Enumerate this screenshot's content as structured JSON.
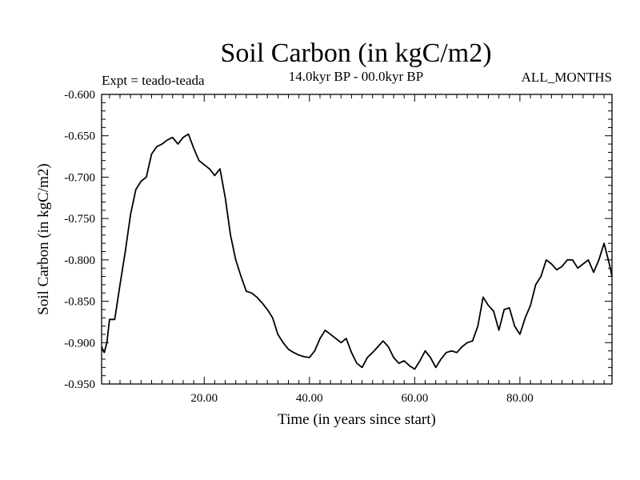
{
  "chart_data": {
    "type": "line",
    "title": "Soil Carbon (in kgC/m2)",
    "subtitle": "14.0kyr BP - 00.0kyr BP",
    "experiment": "Expt = teado-teada",
    "months": "ALL_MONTHS",
    "xlabel": "Time (in years since start)",
    "ylabel": "Soil Carbon (in kgC/m2)",
    "xlim": [
      0.5,
      97.5
    ],
    "ylim": [
      -0.95,
      -0.6
    ],
    "xticks": [
      20,
      40,
      60,
      80
    ],
    "xtick_labels": [
      "20.00",
      "40.00",
      "60.00",
      "80.00"
    ],
    "yticks": [
      -0.6,
      -0.65,
      -0.7,
      -0.75,
      -0.8,
      -0.85,
      -0.9,
      -0.95
    ],
    "ytick_labels": [
      "-0.600",
      "-0.650",
      "-0.700",
      "-0.750",
      "-0.800",
      "-0.850",
      "-0.900",
      "-0.950"
    ],
    "x": [
      0.5,
      1,
      1.5,
      2,
      3,
      4,
      5,
      6,
      7,
      8,
      9,
      10,
      11,
      12,
      13,
      14,
      15,
      16,
      17,
      18,
      19,
      20,
      21,
      22,
      23,
      24,
      25,
      26,
      27,
      28,
      29,
      30,
      31,
      32,
      33,
      34,
      35,
      36,
      37,
      38,
      39,
      40,
      41,
      42,
      43,
      44,
      45,
      46,
      47,
      48,
      49,
      50,
      51,
      52,
      53,
      54,
      55,
      56,
      57,
      58,
      59,
      60,
      61,
      62,
      63,
      64,
      65,
      66,
      67,
      68,
      69,
      70,
      71,
      72,
      73,
      74,
      75,
      76,
      77,
      78,
      79,
      80,
      81,
      82,
      83,
      84,
      85,
      86,
      87,
      88,
      89,
      90,
      91,
      92,
      93,
      94,
      95,
      96,
      97,
      97.5
    ],
    "values": [
      -0.905,
      -0.912,
      -0.9,
      -0.872,
      -0.872,
      -0.83,
      -0.79,
      -0.745,
      -0.715,
      -0.705,
      -0.7,
      -0.672,
      -0.663,
      -0.66,
      -0.655,
      -0.652,
      -0.66,
      -0.652,
      -0.648,
      -0.665,
      -0.68,
      -0.685,
      -0.69,
      -0.698,
      -0.69,
      -0.725,
      -0.77,
      -0.8,
      -0.82,
      -0.838,
      -0.84,
      -0.845,
      -0.852,
      -0.86,
      -0.87,
      -0.89,
      -0.9,
      -0.908,
      -0.912,
      -0.915,
      -0.917,
      -0.918,
      -0.91,
      -0.895,
      -0.885,
      -0.89,
      -0.895,
      -0.9,
      -0.895,
      -0.912,
      -0.925,
      -0.93,
      -0.918,
      -0.912,
      -0.905,
      -0.898,
      -0.905,
      -0.918,
      -0.925,
      -0.922,
      -0.928,
      -0.932,
      -0.922,
      -0.91,
      -0.918,
      -0.93,
      -0.92,
      -0.912,
      -0.91,
      -0.912,
      -0.905,
      -0.9,
      -0.898,
      -0.88,
      -0.845,
      -0.855,
      -0.862,
      -0.885,
      -0.86,
      -0.858,
      -0.88,
      -0.89,
      -0.87,
      -0.855,
      -0.83,
      -0.82,
      -0.8,
      -0.805,
      -0.812,
      -0.808,
      -0.8,
      -0.8,
      -0.81,
      -0.805,
      -0.8,
      -0.815,
      -0.8,
      -0.78,
      -0.805,
      -0.82
    ]
  }
}
